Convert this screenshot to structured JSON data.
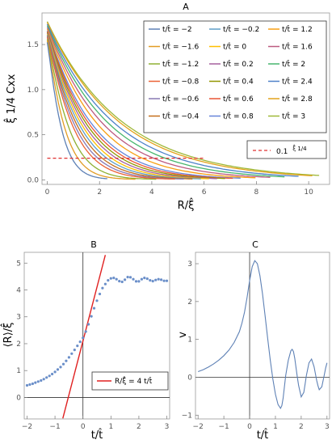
{
  "chart_data": [
    {
      "panel": "A",
      "type": "line",
      "title": "A",
      "xlabel": "R/ξ̂",
      "ylabel": "ξ̂ 1/4 Cxx",
      "xlim": [
        -0.2,
        10.8
      ],
      "ylim": [
        -0.05,
        1.85
      ],
      "xticks": [
        "0",
        "2",
        "4",
        "6",
        "8",
        "10"
      ],
      "yticks": [
        "0.0",
        "0.5",
        "1.0",
        "1.5"
      ],
      "legend_position": "top-right",
      "series": [
        {
          "name": "t/t̂ = −2",
          "t": -2,
          "color": "#5e81b5"
        },
        {
          "name": "t/t̂ = −1.6",
          "t": -1.6,
          "color": "#e19c24"
        },
        {
          "name": "t/t̂ = −1.2",
          "t": -1.2,
          "color": "#8fb032"
        },
        {
          "name": "t/t̂ = −0.8",
          "t": -0.8,
          "color": "#eb6235"
        },
        {
          "name": "t/t̂ = −0.6",
          "t": -0.6,
          "color": "#8778b3"
        },
        {
          "name": "t/t̂ = −0.4",
          "t": -0.4,
          "color": "#c56e1a"
        },
        {
          "name": "t/t̂ = −0.2",
          "t": -0.2,
          "color": "#5d9ec7"
        },
        {
          "name": "t/t̂ = 0",
          "t": 0,
          "color": "#ffbf00"
        },
        {
          "name": "t/t̂ = 0.2",
          "t": 0.2,
          "color": "#a5609d"
        },
        {
          "name": "t/t̂ = 0.4",
          "t": 0.4,
          "color": "#929600"
        },
        {
          "name": "t/t̂ = 0.6",
          "t": 0.6,
          "color": "#e95536"
        },
        {
          "name": "t/t̂ = 0.8",
          "t": 0.8,
          "color": "#6685d9"
        },
        {
          "name": "t/t̂ = 1.2",
          "t": 1.2,
          "color": "#f89f13"
        },
        {
          "name": "t/t̂ = 1.6",
          "t": 1.6,
          "color": "#bc5b80"
        },
        {
          "name": "t/t̂ = 2",
          "t": 2,
          "color": "#47b66d"
        },
        {
          "name": "t/t̂ = 2.4",
          "t": 2.4,
          "color": "#4e81c8"
        },
        {
          "name": "t/t̂ = 2.8",
          "t": 2.8,
          "color": "#e3a21a"
        },
        {
          "name": "t/t̂ = 3",
          "t": 3,
          "color": "#9eb837"
        }
      ],
      "reference_line": {
        "name": "0.1 ξ̂^1/4",
        "label": "0.1",
        "label_sup": "ξ̂ 1/4",
        "y": 0.24,
        "x_range": [
          0,
          6
        ],
        "color": "#e03030"
      }
    },
    {
      "panel": "B",
      "type": "scatter",
      "title": "B",
      "xlabel": "t/t̂",
      "ylabel": "⟨R⟩/ξ̂",
      "xlim": [
        -2.1,
        3.1
      ],
      "ylim": [
        -0.8,
        5.4
      ],
      "xticks": [
        "−2",
        "−1",
        "0",
        "1",
        "2",
        "3"
      ],
      "yticks": [
        "0",
        "1",
        "2",
        "3",
        "4",
        "5"
      ],
      "x": [
        -2.0,
        -1.9,
        -1.8,
        -1.7,
        -1.6,
        -1.5,
        -1.4,
        -1.3,
        -1.2,
        -1.1,
        -1.0,
        -0.9,
        -0.8,
        -0.7,
        -0.6,
        -0.5,
        -0.4,
        -0.3,
        -0.2,
        -0.1,
        0.0,
        0.1,
        0.2,
        0.3,
        0.4,
        0.5,
        0.6,
        0.7,
        0.8,
        0.9,
        1.0,
        1.1,
        1.2,
        1.3,
        1.4,
        1.5,
        1.6,
        1.7,
        1.8,
        1.9,
        2.0,
        2.1,
        2.2,
        2.3,
        2.4,
        2.5,
        2.6,
        2.7,
        2.8,
        2.9,
        3.0
      ],
      "y": [
        0.45,
        0.48,
        0.51,
        0.55,
        0.59,
        0.63,
        0.68,
        0.74,
        0.8,
        0.87,
        0.95,
        1.04,
        1.13,
        1.24,
        1.36,
        1.49,
        1.63,
        1.77,
        1.92,
        2.07,
        2.22,
        2.45,
        2.72,
        3.02,
        3.32,
        3.6,
        3.85,
        4.07,
        4.22,
        4.36,
        4.43,
        4.45,
        4.4,
        4.33,
        4.3,
        4.38,
        4.48,
        4.47,
        4.4,
        4.32,
        4.32,
        4.4,
        4.45,
        4.42,
        4.36,
        4.33,
        4.37,
        4.4,
        4.38,
        4.34,
        4.34
      ],
      "marker_color": "#6b8fc9",
      "fit_line": {
        "name": "R/ξ̂ = 4 t/t̂",
        "label": "R/ξ̂ = 4 t/t̂",
        "slope": 4,
        "intercept": 2.1,
        "x_range": [
          -0.72,
          0.8
        ],
        "color": "#e02020"
      },
      "legend_position": "bottom-right"
    },
    {
      "panel": "C",
      "type": "line",
      "title": "C",
      "xlabel": "t/t̂",
      "ylabel": "v",
      "xlim": [
        -2.1,
        3.1
      ],
      "ylim": [
        -1.1,
        3.3
      ],
      "xticks": [
        "−2",
        "−1",
        "0",
        "1",
        "2",
        "3"
      ],
      "yticks": [
        "−1",
        "0",
        "1",
        "2",
        "3"
      ],
      "x": [
        -2.0,
        -1.8,
        -1.6,
        -1.4,
        -1.2,
        -1.0,
        -0.8,
        -0.6,
        -0.4,
        -0.3,
        -0.2,
        -0.1,
        0.0,
        0.1,
        0.2,
        0.3,
        0.4,
        0.5,
        0.6,
        0.7,
        0.8,
        0.9,
        1.0,
        1.1,
        1.2,
        1.25,
        1.3,
        1.35,
        1.4,
        1.5,
        1.6,
        1.65,
        1.7,
        1.75,
        1.8,
        1.85,
        1.9,
        2.0,
        2.1,
        2.15,
        2.2,
        2.3,
        2.4,
        2.5,
        2.55,
        2.6,
        2.65,
        2.7,
        2.8,
        2.9,
        2.95,
        3.0
      ],
      "y": [
        0.15,
        0.2,
        0.27,
        0.35,
        0.45,
        0.57,
        0.72,
        0.92,
        1.2,
        1.43,
        1.72,
        2.1,
        2.55,
        2.92,
        3.08,
        3.0,
        2.68,
        2.2,
        1.62,
        1.02,
        0.45,
        -0.05,
        -0.45,
        -0.72,
        -0.82,
        -0.75,
        -0.55,
        -0.25,
        0.05,
        0.45,
        0.7,
        0.74,
        0.68,
        0.5,
        0.25,
        0.0,
        -0.22,
        -0.52,
        -0.4,
        -0.18,
        0.05,
        0.38,
        0.48,
        0.28,
        0.1,
        -0.08,
        -0.22,
        -0.33,
        -0.25,
        0.08,
        0.25,
        0.38
      ],
      "line_color": "#5e81b5"
    }
  ]
}
